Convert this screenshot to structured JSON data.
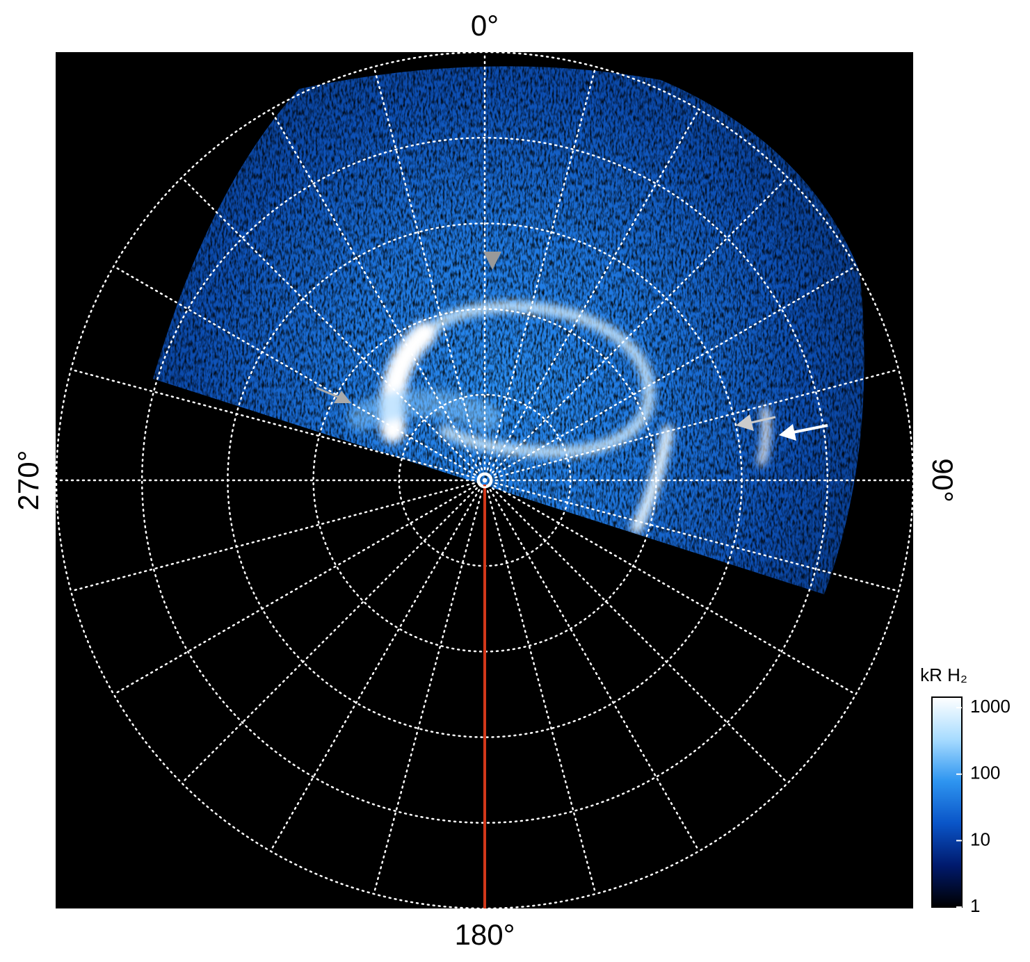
{
  "chart_data": {
    "type": "polar-image",
    "angle_labels": [
      "0°",
      "90°",
      "180°",
      "270°"
    ],
    "colorbar": {
      "title": "kR H₂",
      "log_scale": true,
      "lim": [
        1,
        1440
      ],
      "ticks": [
        1,
        10,
        100,
        1000
      ],
      "colors": [
        "#000000",
        "#001a6e",
        "#0a55c8",
        "#2e95f0",
        "#a8dcff",
        "#ffffff"
      ]
    }
  }
}
